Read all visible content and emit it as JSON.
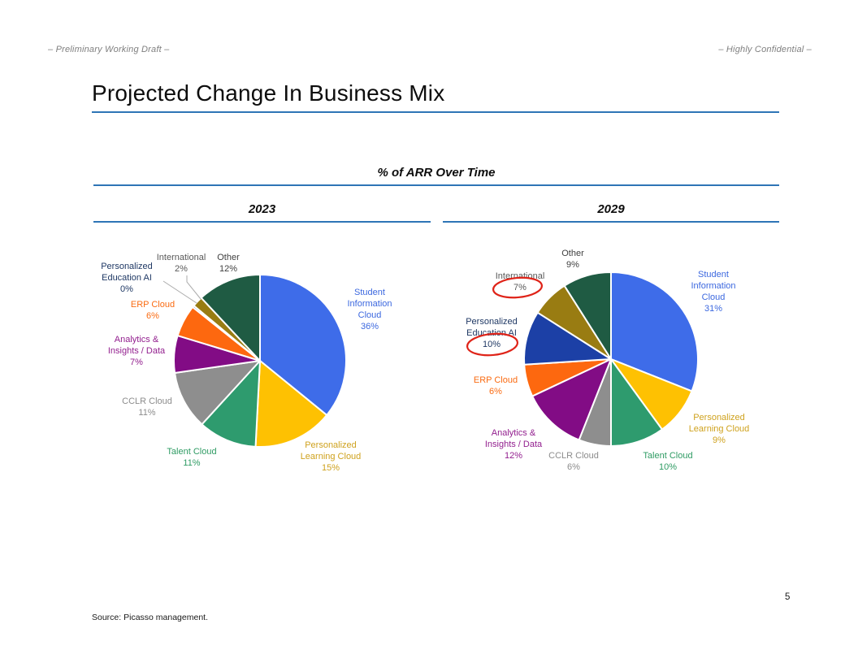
{
  "page": {
    "header_left": "– Preliminary Working Draft –",
    "header_right": "– Highly Confidential –",
    "title": "Projected Change In Business Mix",
    "source": "Source: Picasso management.",
    "page_number": "5"
  },
  "colors": {
    "accent_rule": "#2E75B6",
    "annotation_red": "#DF2318",
    "leader_line": "#ABABAB",
    "header_gray": "#7F7F7F"
  },
  "chart_data": {
    "type": "pie",
    "title": "% of ARR Over Time",
    "legend_position": "none",
    "charts": [
      {
        "type": "pie",
        "title": "2023",
        "slices": [
          {
            "label": "Student Information Cloud",
            "value": 36,
            "pct": "36%",
            "display": "Student\nInformation\nCloud",
            "color": "#3E6CE9",
            "label_color": "#3C68DF"
          },
          {
            "label": "Personalized Learning Cloud",
            "value": 15,
            "pct": "15%",
            "display": "Personalized\nLearning Cloud",
            "color": "#FEC102",
            "label_color": "#CFA21E"
          },
          {
            "label": "Talent Cloud",
            "value": 11,
            "pct": "11%",
            "display": "Talent Cloud",
            "color": "#2E9B6E",
            "label_color": "#2E9B63"
          },
          {
            "label": "CCLR Cloud",
            "value": 11,
            "pct": "11%",
            "display": "CCLR Cloud",
            "color": "#8E8E8E",
            "label_color": "#8C8C8C"
          },
          {
            "label": "Analytics & Insights / Data",
            "value": 7,
            "pct": "7%",
            "display": "Analytics &\nInsights / Data",
            "color": "#820C85",
            "label_color": "#93208F"
          },
          {
            "label": "ERP Cloud",
            "value": 6,
            "pct": "6%",
            "display": "ERP Cloud",
            "color": "#FD680F",
            "label_color": "#FA6B12"
          },
          {
            "label": "Personalized Education AI",
            "value": 0,
            "pct": "0%",
            "display": "Personalized\nEducation AI",
            "color": "#1C40A6",
            "label_color": "#1F3864"
          },
          {
            "label": "International",
            "value": 2,
            "pct": "2%",
            "display": "International",
            "color": "#997C12",
            "label_color": "#595959"
          },
          {
            "label": "Other",
            "value": 12,
            "pct": "12%",
            "display": "Other",
            "color": "#1F5B43",
            "label_color": "#3F3F3F"
          }
        ]
      },
      {
        "type": "pie",
        "title": "2029",
        "annotations": [
          "International 7% circled in red",
          "Personalized Education AI 10% circled in red"
        ],
        "slices": [
          {
            "label": "Student Information Cloud",
            "value": 31,
            "pct": "31%",
            "display": "Student\nInformation\nCloud",
            "color": "#3E6CE9",
            "label_color": "#3C68DF"
          },
          {
            "label": "Personalized Learning Cloud",
            "value": 9,
            "pct": "9%",
            "display": "Personalized\nLearning Cloud",
            "color": "#FEC102",
            "label_color": "#CFA21E"
          },
          {
            "label": "Talent Cloud",
            "value": 10,
            "pct": "10%",
            "display": "Talent Cloud",
            "color": "#2E9B6E",
            "label_color": "#2E9B63"
          },
          {
            "label": "CCLR Cloud",
            "value": 6,
            "pct": "6%",
            "display": "CCLR Cloud",
            "color": "#8E8E8E",
            "label_color": "#8C8C8C"
          },
          {
            "label": "Analytics & Insights / Data",
            "value": 12,
            "pct": "12%",
            "display": "Analytics &\nInsights / Data",
            "color": "#820C85",
            "label_color": "#93208F"
          },
          {
            "label": "ERP Cloud",
            "value": 6,
            "pct": "6%",
            "display": "ERP Cloud",
            "color": "#FD680F",
            "label_color": "#FA6B12"
          },
          {
            "label": "Personalized Education AI",
            "value": 10,
            "pct": "10%",
            "display": "Personalized\nEducation AI",
            "color": "#1C40A6",
            "label_color": "#1F3864"
          },
          {
            "label": "International",
            "value": 7,
            "pct": "7%",
            "display": "International",
            "color": "#997C12",
            "label_color": "#595959"
          },
          {
            "label": "Other",
            "value": 9,
            "pct": "9%",
            "display": "Other",
            "color": "#1F5B43",
            "label_color": "#3F3F3F"
          }
        ]
      }
    ]
  }
}
